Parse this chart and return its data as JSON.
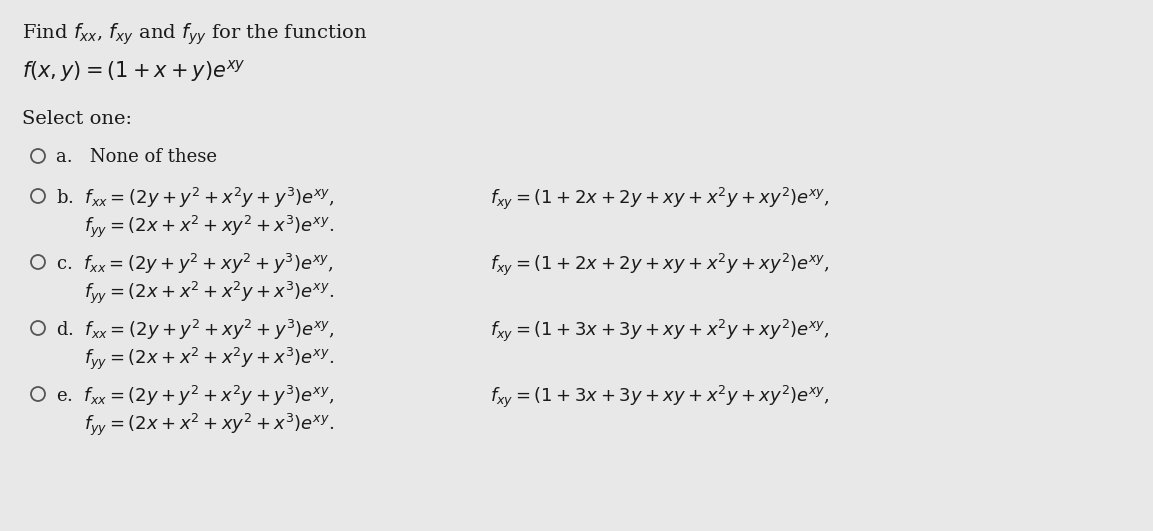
{
  "bg_color": "#e8e8e8",
  "text_color": "#1a1a1a",
  "font_size_title": 14,
  "font_size_body": 13,
  "title_line1": "Find $f_{xx}$, $f_{xy}$ and $f_{yy}$ for the function",
  "title_line2": "$f(x, y) = (1 + x + y)e^{xy}$",
  "select_one": "Select one:",
  "opt_a_text": "None of these",
  "opt_b_fxx": "$f_{xx} = (2y + y^2 + x^2y + y^3)e^{xy}$,",
  "opt_b_fyy": "$f_{yy} = (2x + x^2 + xy^2 + x^3)e^{xy}$.",
  "opt_b_fxy": "$f_{xy} = (1 + 2x + 2y + xy + x^2y + xy^2)e^{xy}$,",
  "opt_c_fxx": "$f_{xx} = (2y + y^2 + xy^2 + y^3)e^{xy}$,",
  "opt_c_fyy": "$f_{yy} = (2x + x^2 + x^2y + x^3)e^{xy}$.",
  "opt_c_fxy": "$f_{xy} = (1 + 2x + 2y + xy + x^2y + xy^2)e^{xy}$,",
  "opt_d_fxx": "$f_{xx} = (2y + y^2 + xy^2 + y^3)e^{xy}$,",
  "opt_d_fyy": "$f_{yy} = (2x + x^2 + x^2y + x^3)e^{xy}$.",
  "opt_d_fxy": "$f_{xy} = (1 + 3x + 3y + xy + x^2y + xy^2)e^{xy}$,",
  "opt_e_fxx": "$f_{xx} = (2y + y^2 + x^2y + y^3)e^{xy}$,",
  "opt_e_fyy": "$f_{yy} = (2x + x^2 + xy^2 + x^3)e^{xy}$.",
  "opt_e_fxy": "$f_{xy} = (1 + 3x + 3y + xy + x^2y + xy^2)e^{xy}$,"
}
